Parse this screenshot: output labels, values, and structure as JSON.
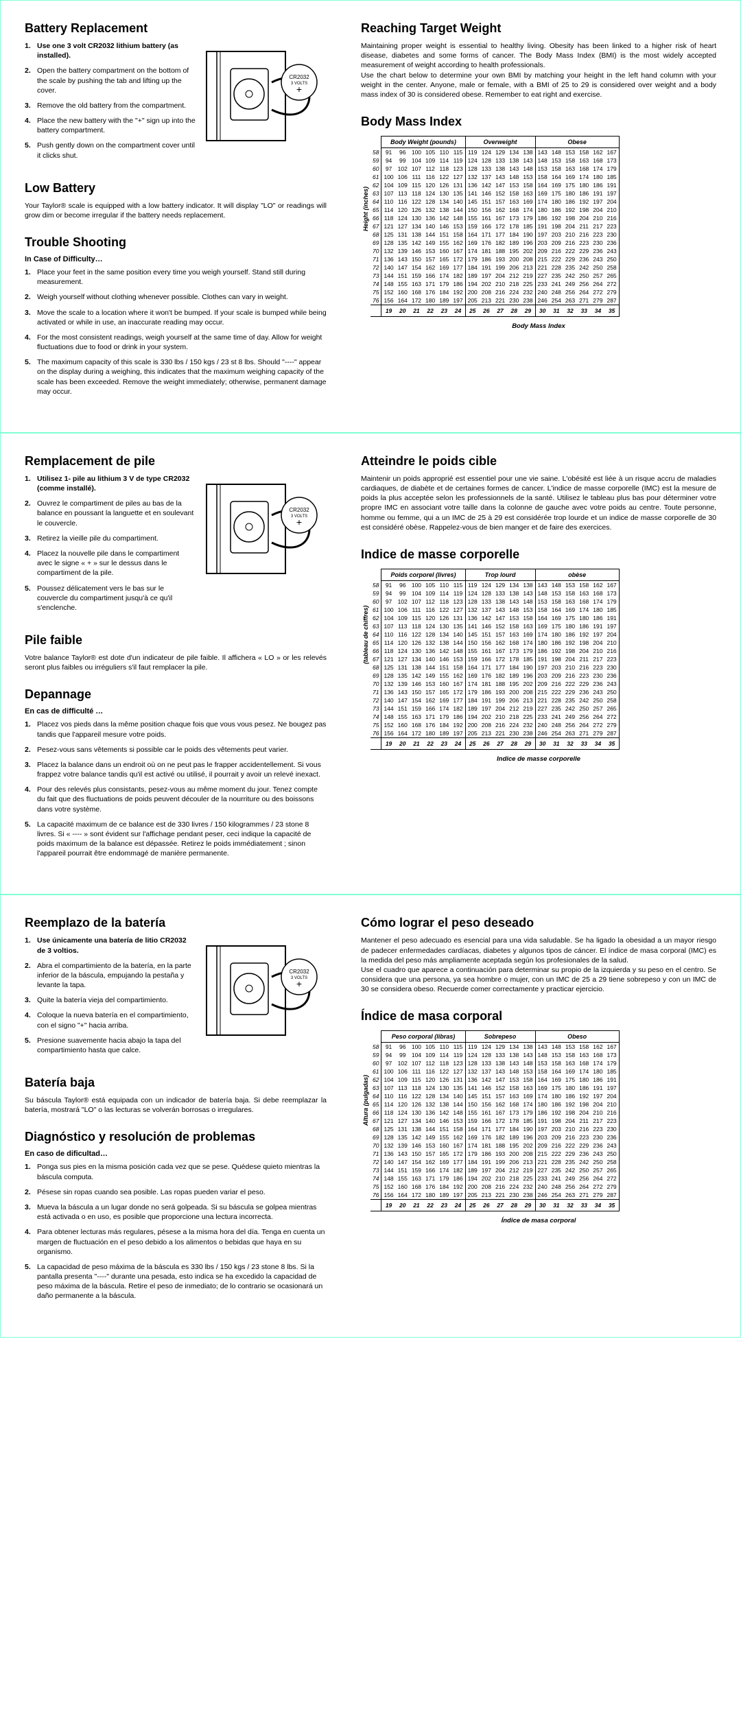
{
  "bmi_data": {
    "heights": [
      58,
      59,
      60,
      61,
      62,
      63,
      64,
      65,
      66,
      67,
      68,
      69,
      70,
      71,
      72,
      73,
      74,
      75,
      76
    ],
    "rows": [
      [
        91,
        96,
        100,
        105,
        110,
        115,
        119,
        124,
        129,
        134,
        138,
        143,
        148,
        153,
        158,
        162,
        167
      ],
      [
        94,
        99,
        104,
        109,
        114,
        119,
        124,
        128,
        133,
        138,
        143,
        148,
        153,
        158,
        163,
        168,
        173
      ],
      [
        97,
        102,
        107,
        112,
        118,
        123,
        128,
        133,
        138,
        143,
        148,
        153,
        158,
        163,
        168,
        174,
        179
      ],
      [
        100,
        106,
        111,
        116,
        122,
        127,
        132,
        137,
        143,
        148,
        153,
        158,
        164,
        169,
        174,
        180,
        185
      ],
      [
        104,
        109,
        115,
        120,
        126,
        131,
        136,
        142,
        147,
        153,
        158,
        164,
        169,
        175,
        180,
        186,
        191
      ],
      [
        107,
        113,
        118,
        124,
        130,
        135,
        141,
        146,
        152,
        158,
        163,
        169,
        175,
        180,
        186,
        191,
        197
      ],
      [
        110,
        116,
        122,
        128,
        134,
        140,
        145,
        151,
        157,
        163,
        169,
        174,
        180,
        186,
        192,
        197,
        204
      ],
      [
        114,
        120,
        126,
        132,
        138,
        144,
        150,
        156,
        162,
        168,
        174,
        180,
        186,
        192,
        198,
        204,
        210
      ],
      [
        118,
        124,
        130,
        136,
        142,
        148,
        155,
        161,
        167,
        173,
        179,
        186,
        192,
        198,
        204,
        210,
        216
      ],
      [
        121,
        127,
        134,
        140,
        146,
        153,
        159,
        166,
        172,
        178,
        185,
        191,
        198,
        204,
        211,
        217,
        223
      ],
      [
        125,
        131,
        138,
        144,
        151,
        158,
        164,
        171,
        177,
        184,
        190,
        197,
        203,
        210,
        216,
        223,
        230
      ],
      [
        128,
        135,
        142,
        149,
        155,
        162,
        169,
        176,
        182,
        189,
        196,
        203,
        209,
        216,
        223,
        230,
        236
      ],
      [
        132,
        139,
        146,
        153,
        160,
        167,
        174,
        181,
        188,
        195,
        202,
        209,
        216,
        222,
        229,
        236,
        243
      ],
      [
        136,
        143,
        150,
        157,
        165,
        172,
        179,
        186,
        193,
        200,
        208,
        215,
        222,
        229,
        236,
        243,
        250
      ],
      [
        140,
        147,
        154,
        162,
        169,
        177,
        184,
        191,
        199,
        206,
        213,
        221,
        228,
        235,
        242,
        250,
        258
      ],
      [
        144,
        151,
        159,
        166,
        174,
        182,
        189,
        197,
        204,
        212,
        219,
        227,
        235,
        242,
        250,
        257,
        265
      ],
      [
        148,
        155,
        163,
        171,
        179,
        186,
        194,
        202,
        210,
        218,
        225,
        233,
        241,
        249,
        256,
        264,
        272
      ],
      [
        152,
        160,
        168,
        176,
        184,
        192,
        200,
        208,
        216,
        224,
        232,
        240,
        248,
        256,
        264,
        272,
        279
      ],
      [
        156,
        164,
        172,
        180,
        189,
        197,
        205,
        213,
        221,
        230,
        238,
        246,
        254,
        263,
        271,
        279,
        287
      ]
    ],
    "bmi_row": [
      19,
      20,
      21,
      22,
      23,
      24,
      25,
      26,
      27,
      28,
      29,
      30,
      31,
      32,
      33,
      34,
      35
    ]
  },
  "en": {
    "battery_title": "Battery Replacement",
    "battery_steps": [
      "Use one 3 volt CR2032 lithium battery (as installed).",
      "Open the battery compartment on the bottom of the scale by pushing the tab and lifting up the cover.",
      "Remove the old battery from the compartment.",
      "Place the new battery with the \"+\" sign up into the battery compartment.",
      "Push gently down on the compartment cover until it clicks shut."
    ],
    "low_title": "Low Battery",
    "low_body": "Your Taylor® scale is equipped with a low battery indicator. It will display \"LO\" or readings will grow dim or become irregular if the battery needs replacement.",
    "trouble_title": "Trouble Shooting",
    "trouble_sub": "In Case of Difficulty…",
    "trouble_steps": [
      "Place your feet in the same position every time you weigh yourself. Stand still during measurement.",
      "Weigh yourself without clothing whenever possible. Clothes can vary in weight.",
      "Move the scale to a location where it won't be bumped. If your scale is bumped while being activated or while in use, an inaccurate reading may occur.",
      "For the most consistent readings, weigh yourself at the same time of day. Allow for weight fluctuations due to food or drink in your system.",
      "The maximum capacity of this scale is 330 lbs / 150 kgs / 23 st 8 lbs. Should \"----\" appear on the display during a weighing, this indicates that the maximum weighing capacity of the scale has been exceeded. Remove the weight immediately; otherwise, permanent damage may occur."
    ],
    "reach_title": "Reaching Target Weight",
    "reach_body": "Maintaining proper weight is essential to healthy living. Obesity has been linked to a higher risk of heart disease, diabetes and some forms of cancer. The Body Mass Index (BMI) is the most widely accepted measurement of weight according to health professionals.\nUse the chart below to determine your own BMI by matching your height in the left hand column with your weight in the center. Anyone, male or female, with a BMI of 25 to 29 is considered over weight and a body mass index of 30 is considered obese. Remember to eat right and exercise.",
    "bmi_title": "Body Mass Index",
    "bmi_headers": [
      "Body Weight (pounds)",
      "Overweight",
      "Obese"
    ],
    "bmi_ylabel": "Height (inches)",
    "bmi_caption": "Body Mass Index"
  },
  "fr": {
    "battery_title": "Remplacement de pile",
    "battery_steps": [
      "Utilisez 1- pile au lithium 3 V de type CR2032 (comme installé).",
      "Ouvrez le compartiment de piles au bas de la balance en poussant la languette et en soulevant le couvercle.",
      "Retirez la vieille pile du compartiment.",
      "Placez la nouvelle pile dans le compartiment avec le signe « + » sur le dessus dans le compartiment de la pile.",
      "Poussez délicatement vers le bas sur le couvercle du compartiment jusqu'à ce qu'il s'enclenche."
    ],
    "low_title": "Pile faible",
    "low_body": "Votre balance Taylor® est dote d'un indicateur de pile faible. Il affichera « LO » or les relevés seront plus faibles ou irréguliers s'il faut remplacer la pile.",
    "trouble_title": "Depannage",
    "trouble_sub": "En cas de difficulté …",
    "trouble_steps": [
      "Placez vos pieds dans la même position chaque fois que vous vous pesez. Ne bougez pas tandis que l'appareil mesure votre poids.",
      "Pesez-vous sans vêtements si possible car le poids des vêtements peut varier.",
      "Placez la balance dans un endroit où on ne peut pas le frapper accidentellement. Si vous frappez votre balance tandis qu'il est activé ou utilisé, il pourrait y avoir un relevé inexact.",
      "Pour des relevés plus consistants, pesez-vous au même moment du jour. Tenez compte du fait que des fluctuations de poids peuvent découler de la nourriture ou des boissons dans votre système.",
      "La capacité maximum de ce balance est de 330 livres / 150 kilogrammes / 23 stone 8 livres. Si « ---- » sont évident sur l'affichage pendant peser, ceci indique la capacité de poids maximum de la balance est dépassée. Retirez le poids immédiatement ; sinon l'appareil pourrait être endommagé de manière permanente."
    ],
    "reach_title": "Atteindre le poids cible",
    "reach_body": "Maintenir un poids approprié est essentiel pour une vie saine. L'obésité est liée à un risque accru de maladies cardiaques, de diabète et de certaines formes de cancer. L'indice de masse corporelle (IMC) est la mesure de poids la plus acceptée selon les professionnels de la santé. Utilisez le tableau plus bas pour déterminer votre propre IMC en associant votre taille dans la colonne de gauche avec votre poids au centre. Toute personne, homme ou femme, qui a un IMC de 25 à 29 est considérée trop lourde et un indice de masse corporelle de 30 est considéré obèse. Rappelez-vous de bien manger et de faire des exercices.",
    "bmi_title": "Indice de masse corporelle",
    "bmi_headers": [
      "Poids corporel (livres)",
      "Trop lourd",
      "obèse"
    ],
    "bmi_ylabel": "(tableau de chiffres)",
    "bmi_caption": "Indice de masse corporelle"
  },
  "es": {
    "battery_title": "Reemplazo de la batería",
    "battery_steps": [
      "Use únicamente una batería de litio CR2032 de 3 voltios.",
      "Abra el compartimiento de la batería, en la parte inferior de la báscula, empujando la pestaña y levante la tapa.",
      "Quite la batería vieja del compartimiento.",
      "Coloque la nueva batería en el compartimiento, con el signo \"+\" hacia arriba.",
      "Presione suavemente hacia abajo la tapa del compartimiento hasta que calce."
    ],
    "low_title": "Batería baja",
    "low_body": "Su báscula Taylor® está equipada con un indicador de batería baja. Si debe reemplazar la batería, mostrará \"LO\" o las lecturas se volverán borrosas o irregulares.",
    "trouble_title": "Diagnóstico y resolución de problemas",
    "trouble_sub": "En caso de dificultad…",
    "trouble_steps": [
      "Ponga sus pies en la misma posición cada vez que se pese. Quédese quieto mientras la báscula computa.",
      "Pésese sin ropas cuando sea posible. Las ropas pueden variar el peso.",
      "Mueva la báscula a un lugar donde no será golpeada. Si su báscula se golpea mientras está activada o en uso, es posible que proporcione una lectura incorrecta.",
      "Para obtener lecturas más regulares, pésese a la misma hora del día. Tenga en cuenta un margen de fluctuación en el peso debido a los alimentos o bebidas que haya en su organismo.",
      "La capacidad de peso máxima de la báscula es 330 lbs / 150 kgs / 23 stone 8 lbs. Si la pantalla presenta \"----\" durante una pesada, esto indica se ha excedido la capacidad de peso máxima de la báscula. Retire el peso de inmediato; de lo contrario se ocasionará un daño permanente a la báscula."
    ],
    "reach_title": "Cómo lograr el peso deseado",
    "reach_body": "Mantener el peso adecuado es esencial para una vida saludable. Se ha ligado la obesidad a un mayor riesgo de padecer enfermedades cardíacas, diabetes y algunos tipos de cáncer. El índice de masa corporal (IMC) es la medida del peso más ampliamente aceptada según los profesionales de la salud.\nUse el cuadro que aparece a continuación para determinar su propio de la izquierda y su peso en el centro. Se considera que una persona, ya sea hombre o mujer, con un IMC de 25 a 29 tiene sobrepeso y con un IMC de 30 se considera obeso. Recuerde comer correctamente y practicar ejercicio.",
    "bmi_title": "Índice de masa corporal",
    "bmi_headers": [
      "Peso corporal (libras)",
      "Sobrepeso",
      "Obeso"
    ],
    "bmi_ylabel": "Altura (pulgadas)",
    "bmi_caption": "Índice de masa corporal"
  }
}
